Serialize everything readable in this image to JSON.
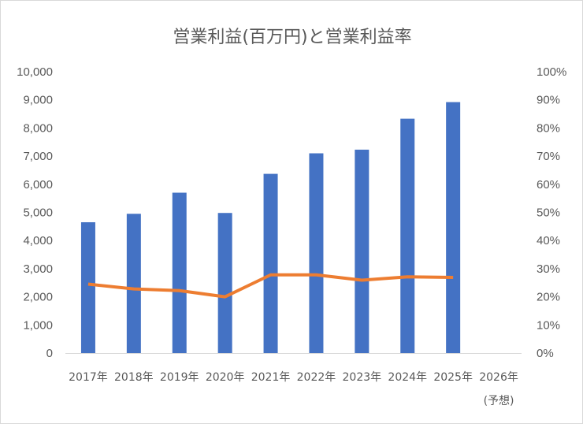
{
  "chart_data": {
    "type": "bar",
    "title": "営業利益(百万円)と営業利益率",
    "categories": [
      "2017年",
      "2018年",
      "2019年",
      "2020年",
      "2021年",
      "2022年",
      "2023年",
      "2024年",
      "2025年",
      "2026年"
    ],
    "category_sublabels": [
      "",
      "",
      "",
      "",
      "",
      "",
      "",
      "",
      "",
      "(予想)"
    ],
    "series": [
      {
        "type": "bar",
        "axis": "left",
        "color": "#4472c4",
        "values": [
          4650,
          4950,
          5700,
          4980,
          6370,
          7100,
          7230,
          8330,
          8920,
          null
        ]
      },
      {
        "type": "line",
        "axis": "right",
        "color": "#ed7d31",
        "values": [
          0.245,
          0.228,
          0.222,
          0.2,
          0.278,
          0.278,
          0.259,
          0.271,
          0.269,
          null
        ]
      }
    ],
    "ylim": [
      0,
      10000
    ],
    "yticks": [
      "0",
      "1,000",
      "2,000",
      "3,000",
      "4,000",
      "5,000",
      "6,000",
      "7,000",
      "8,000",
      "9,000",
      "10,000"
    ],
    "y2lim": [
      0,
      1
    ],
    "y2ticks": [
      "0%",
      "10%",
      "20%",
      "30%",
      "40%",
      "50%",
      "60%",
      "70%",
      "80%",
      "90%",
      "100%"
    ],
    "grid": false,
    "legend": "none"
  }
}
